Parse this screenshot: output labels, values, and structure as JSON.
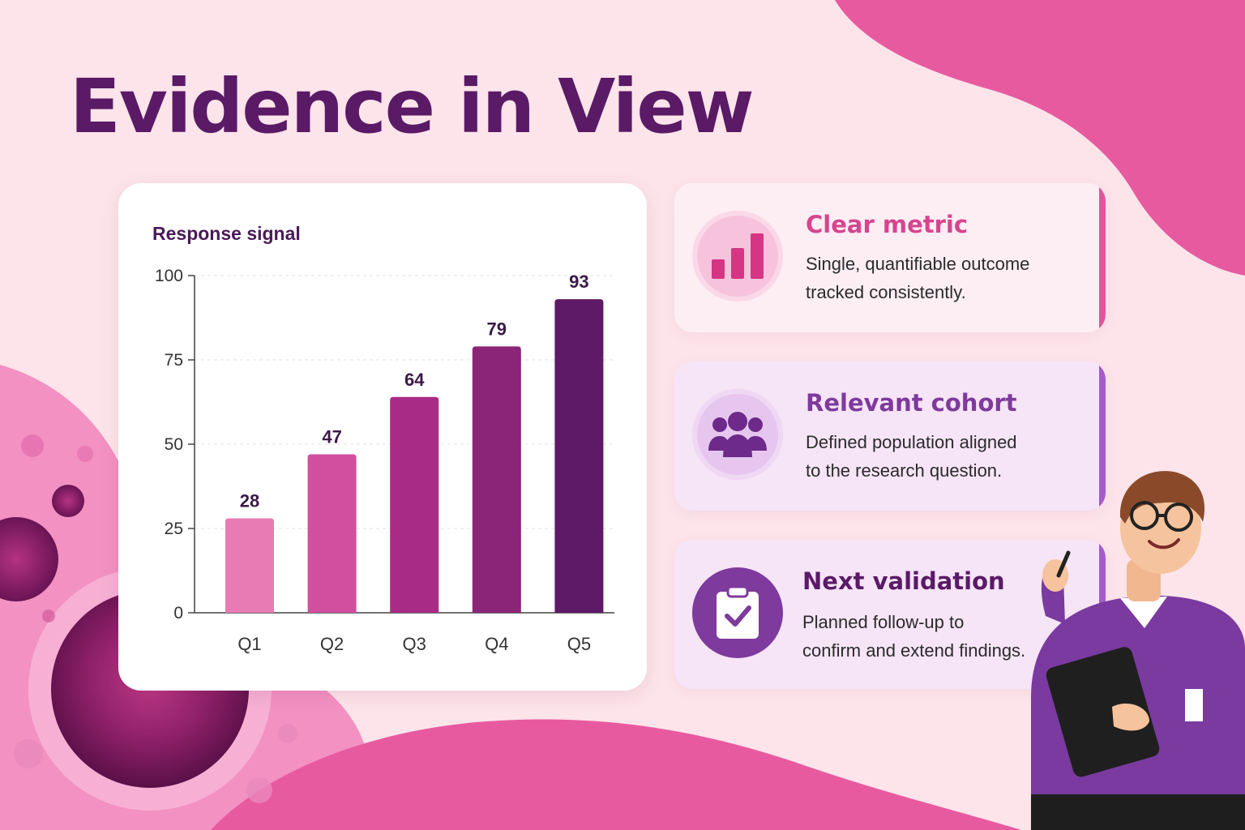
{
  "title": "Evidence in View",
  "colors": {
    "title": "#5a1a66",
    "background": "#fde4ea",
    "blob": "#e85aa0",
    "bars": [
      "#e87bb4",
      "#d04f9e",
      "#a82c86",
      "#8a2578",
      "#5e1a66"
    ]
  },
  "chart_data": {
    "type": "bar",
    "title": "Response signal",
    "categories": [
      "Q1",
      "Q2",
      "Q3",
      "Q4",
      "Q5"
    ],
    "values": [
      28,
      47,
      64,
      79,
      93
    ],
    "ylim": [
      0,
      100
    ],
    "yticks": [
      0,
      25,
      50,
      75,
      100
    ],
    "grid": true,
    "legend": "none"
  },
  "cards": [
    {
      "heading": "Clear metric",
      "desc_line1": "Single, quantifiable outcome",
      "desc_line2": "tracked consistently.",
      "icon": "bar-chart-icon"
    },
    {
      "heading": "Relevant cohort",
      "desc_line1": "Defined population aligned",
      "desc_line2": "to the research question.",
      "icon": "group-icon"
    },
    {
      "heading": "Next validation",
      "desc_line1": "Planned follow-up to",
      "desc_line2": "confirm and extend findings.",
      "icon": "clipboard-check-icon"
    }
  ]
}
